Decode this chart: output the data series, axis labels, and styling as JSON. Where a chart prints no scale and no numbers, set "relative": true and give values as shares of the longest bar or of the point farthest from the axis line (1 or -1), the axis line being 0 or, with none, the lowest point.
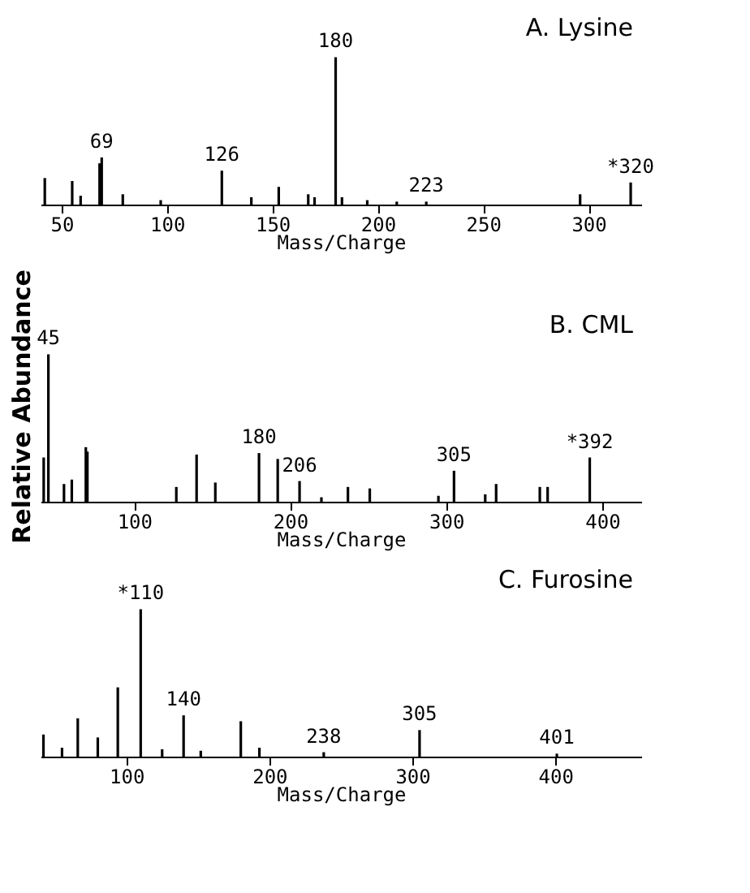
{
  "chart_data": [
    {
      "type": "bar",
      "relative": true,
      "title": "A. Lysine",
      "xlabel": "Mass/Charge",
      "xlim": [
        40,
        325
      ],
      "xticks": [
        50,
        100,
        150,
        200,
        250,
        300
      ],
      "grid": false,
      "x": [
        42,
        55,
        59,
        68,
        69,
        79,
        97,
        126,
        140,
        153,
        167,
        170,
        180,
        183,
        195,
        209,
        223,
        296,
        320
      ],
      "series": [
        {
          "color": "#000000",
          "values": [
            0.18,
            0.16,
            0.06,
            0.28,
            0.32,
            0.07,
            0.03,
            0.23,
            0.05,
            0.12,
            0.07,
            0.05,
            1.0,
            0.05,
            0.03,
            0.02,
            0.02,
            0.07,
            0.15
          ]
        }
      ],
      "annotations": [
        {
          "text": "69",
          "x": 69,
          "y": 0.32
        },
        {
          "text": "126",
          "x": 126,
          "y": 0.23
        },
        {
          "text": "180",
          "x": 180,
          "y": 1.0
        },
        {
          "text": "223",
          "x": 223,
          "y": 0.02
        },
        {
          "text": "*320",
          "x": 320,
          "y": 0.15
        }
      ]
    },
    {
      "type": "bar",
      "relative": true,
      "title": "B. CML",
      "xlabel": "Mass/Charge",
      "ylabel": "Relative Abundance",
      "xlim": [
        40,
        425
      ],
      "xticks": [
        100,
        200,
        300,
        400
      ],
      "grid": false,
      "x": [
        42,
        45,
        55,
        60,
        69,
        70,
        127,
        140,
        152,
        180,
        192,
        206,
        220,
        237,
        251,
        295,
        305,
        325,
        332,
        360,
        365,
        392
      ],
      "series": [
        {
          "color": "#000000",
          "values": [
            0.3,
            1.0,
            0.12,
            0.15,
            0.37,
            0.34,
            0.1,
            0.32,
            0.13,
            0.33,
            0.29,
            0.14,
            0.03,
            0.1,
            0.09,
            0.04,
            0.21,
            0.05,
            0.12,
            0.1,
            0.1,
            0.3
          ]
        }
      ],
      "annotations": [
        {
          "text": "45",
          "x": 45,
          "y": 1.0
        },
        {
          "text": "180",
          "x": 180,
          "y": 0.33
        },
        {
          "text": "206",
          "x": 206,
          "y": 0.14
        },
        {
          "text": "305",
          "x": 305,
          "y": 0.21
        },
        {
          "text": "*392",
          "x": 392,
          "y": 0.3
        }
      ]
    },
    {
      "type": "bar",
      "relative": true,
      "title": "C. Furosine",
      "xlabel": "Mass/Charge",
      "xlim": [
        40,
        460
      ],
      "xticks": [
        100,
        200,
        300,
        400
      ],
      "grid": false,
      "x": [
        42,
        55,
        66,
        80,
        94,
        110,
        125,
        140,
        152,
        180,
        193,
        238,
        305,
        401
      ],
      "series": [
        {
          "color": "#000000",
          "values": [
            0.15,
            0.06,
            0.26,
            0.13,
            0.47,
            1.0,
            0.05,
            0.28,
            0.04,
            0.24,
            0.06,
            0.03,
            0.18,
            0.02
          ]
        }
      ],
      "annotations": [
        {
          "text": "*110",
          "x": 110,
          "y": 1.0
        },
        {
          "text": "140",
          "x": 140,
          "y": 0.28
        },
        {
          "text": "238",
          "x": 238,
          "y": 0.03
        },
        {
          "text": "305",
          "x": 305,
          "y": 0.18
        },
        {
          "text": "401",
          "x": 401,
          "y": 0.02
        }
      ]
    }
  ]
}
